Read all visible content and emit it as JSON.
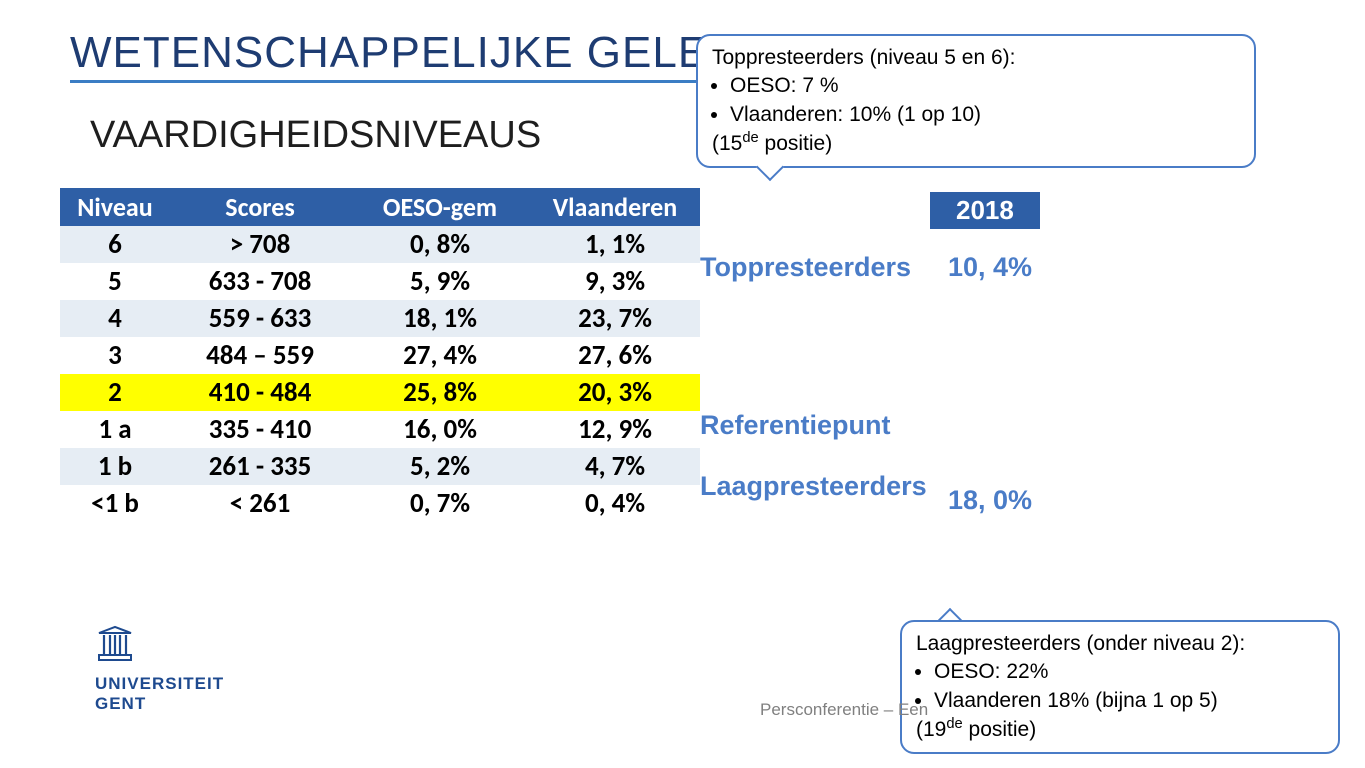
{
  "page": {
    "title": "WETENSCHAPPELIJKE GELETTERDHEID",
    "subtitle": "VAARDIGHEIDSNIVEAUS",
    "year_badge": "2018",
    "footer_note": "Persconferentie – Een"
  },
  "callouts": {
    "top": {
      "title": "Toppresteerders (niveau 5 en 6):",
      "bullet1": "OESO: 7 %",
      "bullet2": "Vlaanderen: 10% (1 op 10)",
      "suffix_pre": "(15",
      "suffix_sup": "de",
      "suffix_post": " positie)"
    },
    "bottom": {
      "title": "Laagpresteerders (onder niveau 2):",
      "bullet1": "OESO: 22%",
      "bullet2": "Vlaanderen 18% (bijna 1 op 5)",
      "suffix_pre": "(19",
      "suffix_sup": "de",
      "suffix_post": " positie)"
    }
  },
  "table": {
    "headers": {
      "c1": "Niveau",
      "c2": "Scores",
      "c3": "OESO-gem",
      "c4": "Vlaanderen"
    },
    "rows": [
      {
        "rowclass": "odd",
        "c1": "6",
        "c2": "> 708",
        "c3": "0, 8%",
        "c4": "1, 1%"
      },
      {
        "rowclass": "even",
        "c1": "5",
        "c2": "633 - 708",
        "c3": "5, 9%",
        "c4": "9, 3%"
      },
      {
        "rowclass": "odd",
        "c1": "4",
        "c2": "559 - 633",
        "c3": "18, 1%",
        "c4": "23, 7%"
      },
      {
        "rowclass": "even",
        "c1": "3",
        "c2": "484 – 559",
        "c3": "27, 4%",
        "c4": "27, 6%"
      },
      {
        "rowclass": "hl",
        "c1": "2",
        "c2": "410 - 484",
        "c3": "25, 8%",
        "c4": "20, 3%"
      },
      {
        "rowclass": "even",
        "c1": "1 a",
        "c2": "335 - 410",
        "c3": "16, 0%",
        "c4": "12, 9%"
      },
      {
        "rowclass": "odd",
        "c1": "1 b",
        "c2": "261 - 335",
        "c3": "5, 2%",
        "c4": "4, 7%"
      },
      {
        "rowclass": "even",
        "c1": "<1 b",
        "c2": "< 261",
        "c3": "0, 7%",
        "c4": "0, 4%"
      }
    ]
  },
  "sidelabels": {
    "topp_label": "Toppresteerders",
    "topp_val": "10, 4%",
    "ref_label": "Referentiepunt",
    "laag_label": "Laagpresteerders",
    "laag_val": "18, 0%"
  },
  "logo": {
    "line1": "UNIVERSITEIT",
    "line2": "GENT"
  },
  "colors": {
    "brand_blue": "#2e5fa6",
    "accent_blue": "#4a7cc7",
    "title_blue": "#1e3c72",
    "highlight": "#ffff00",
    "row_alt": "#e6edf4",
    "text": "#000000",
    "grey": "#808080"
  }
}
